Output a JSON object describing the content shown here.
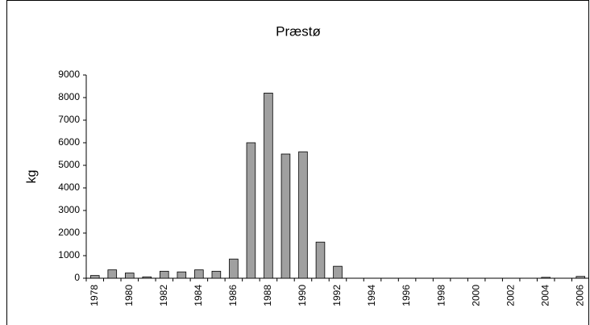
{
  "chart_data": {
    "type": "bar",
    "title": "Præstø",
    "y_label": "kg",
    "categories": [
      "1978",
      null,
      "1980",
      null,
      "1982",
      null,
      "1984",
      null,
      "1986",
      null,
      "1988",
      null,
      "1990",
      null,
      "1992",
      null,
      "1994",
      null,
      "1996",
      null,
      "1998",
      null,
      "2000",
      null,
      "2002",
      null,
      "2004",
      null,
      "2006"
    ],
    "values": [
      120,
      370,
      230,
      60,
      310,
      280,
      370,
      310,
      850,
      6000,
      8200,
      5500,
      5600,
      1600,
      530,
      0,
      0,
      0,
      0,
      0,
      0,
      0,
      0,
      0,
      0,
      0,
      40,
      0,
      80
    ],
    "color": "#a0a0a0",
    "ylim": [
      0,
      9000
    ],
    "yticks": [
      0,
      1000,
      2000,
      3000,
      4000,
      5000,
      6000,
      7000,
      8000,
      9000
    ],
    "grid": false
  }
}
